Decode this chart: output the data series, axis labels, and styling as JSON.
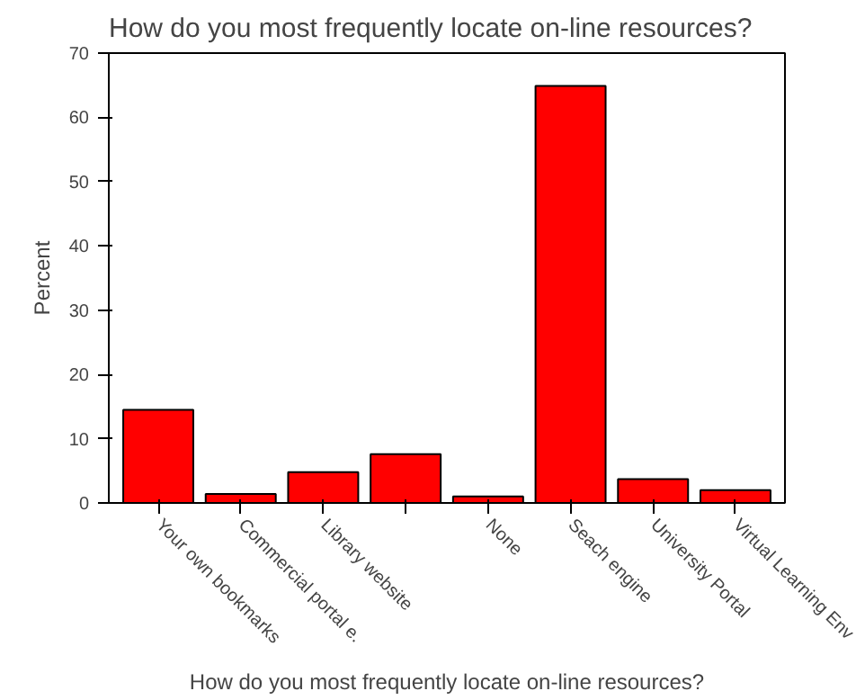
{
  "chart_data": {
    "type": "bar",
    "title": "How do you most frequently locate on-line resources?",
    "xlabel": "How do you most frequently locate on-line resources?",
    "ylabel": "Percent",
    "categories": [
      "Your own bookmarks",
      "Commercial portal e.",
      "Library website",
      null,
      "None",
      "Seach engine",
      "University Portal",
      "Virtual Learning Env"
    ],
    "values": [
      14.5,
      1.4,
      4.8,
      7.6,
      1.0,
      64.9,
      3.7,
      2.0
    ],
    "color": "#ff0000",
    "ylim": [
      0,
      70
    ],
    "yticks": [
      0,
      10,
      20,
      30,
      40,
      50,
      60,
      70
    ],
    "grid": false
  }
}
